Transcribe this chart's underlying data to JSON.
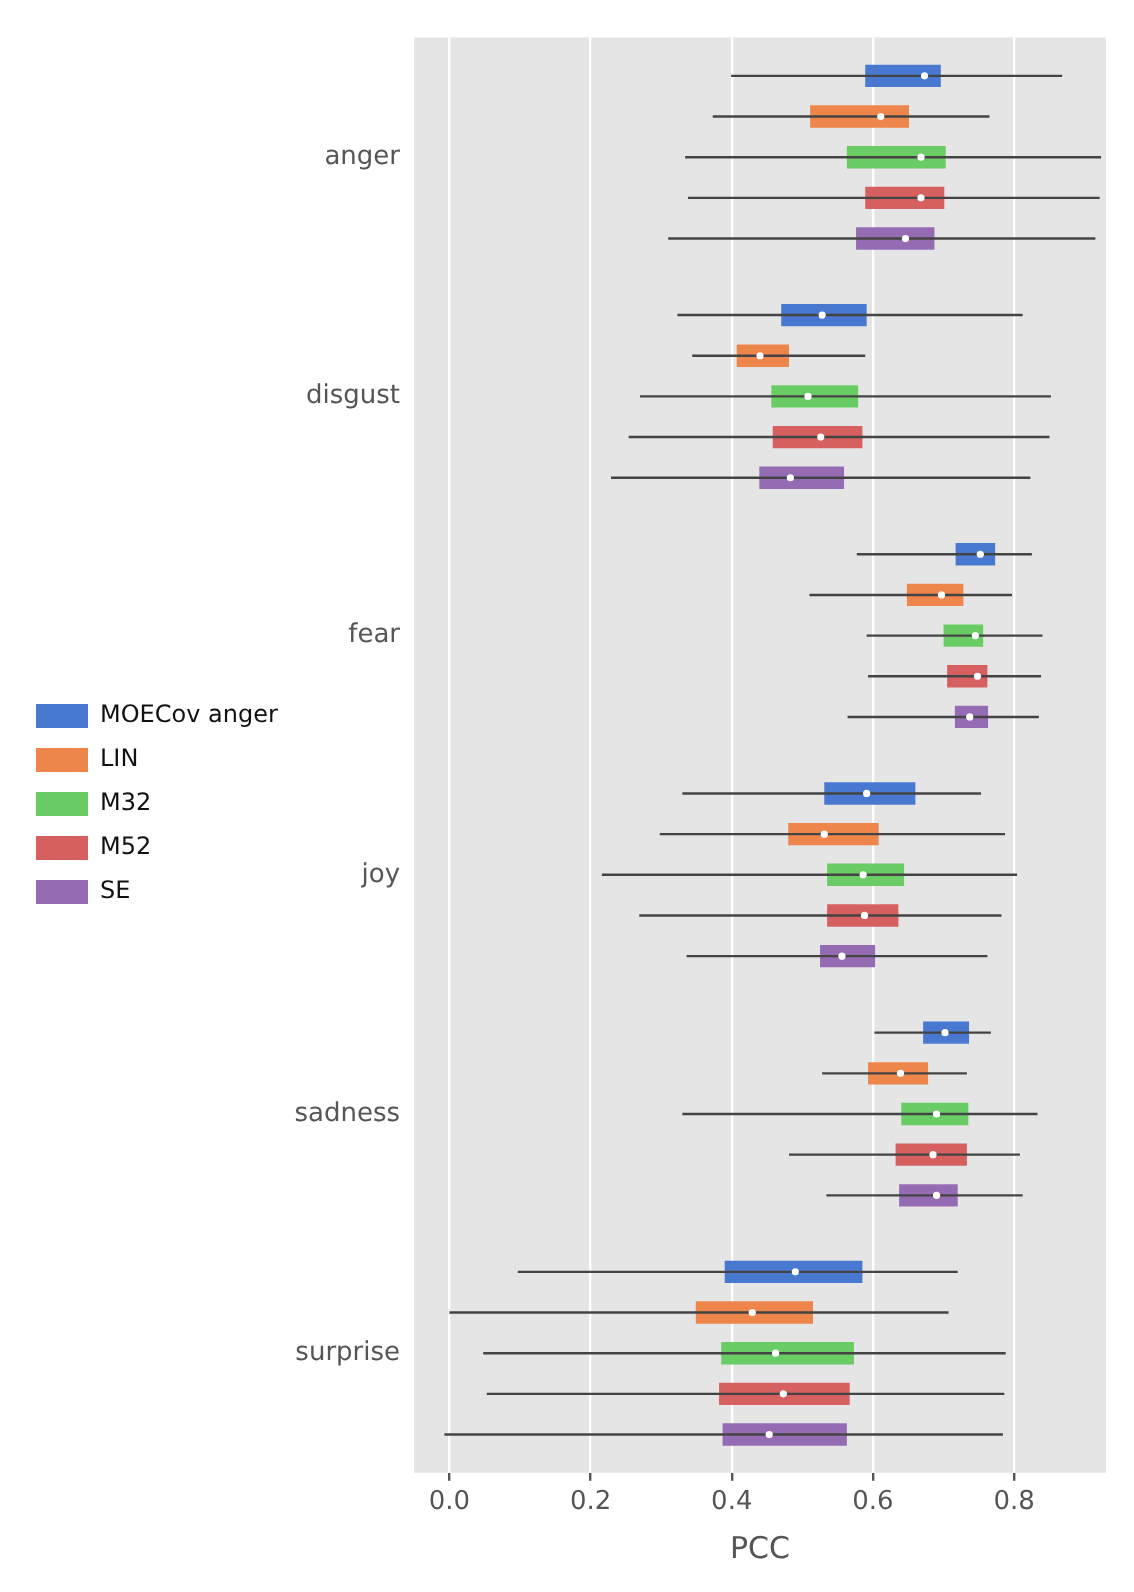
{
  "chart_data": {
    "type": "box",
    "orientation": "horizontal",
    "xlabel": "PCC",
    "categories": [
      "anger",
      "disgust",
      "fear",
      "joy",
      "sadness",
      "surprise"
    ],
    "xlim": [
      -0.05,
      0.93
    ],
    "xticks": [
      {
        "value": 0,
        "label": "0.0"
      },
      {
        "value": 0.2,
        "label": "0.2"
      },
      {
        "value": 0.4,
        "label": "0.4"
      },
      {
        "value": 0.6,
        "label": "0.6"
      },
      {
        "value": 0.8,
        "label": "0.8"
      }
    ],
    "grid": "x",
    "legend": "left",
    "series": [
      {
        "name": "MOECov anger",
        "color": "#4878d0",
        "boxes": [
          {
            "low": 0.399,
            "q1": 0.589,
            "median": 0.673,
            "q3": 0.696,
            "high": 0.868
          },
          {
            "low": 0.323,
            "q1": 0.47,
            "median": 0.528,
            "q3": 0.591,
            "high": 0.812
          },
          {
            "low": 0.577,
            "q1": 0.717,
            "median": 0.752,
            "q3": 0.773,
            "high": 0.825
          },
          {
            "low": 0.33,
            "q1": 0.531,
            "median": 0.591,
            "q3": 0.66,
            "high": 0.753
          },
          {
            "low": 0.602,
            "q1": 0.671,
            "median": 0.702,
            "q3": 0.736,
            "high": 0.767
          },
          {
            "low": 0.097,
            "q1": 0.39,
            "median": 0.49,
            "q3": 0.585,
            "high": 0.72
          }
        ]
      },
      {
        "name": "LIN",
        "color": "#ee854a",
        "boxes": [
          {
            "low": 0.373,
            "q1": 0.511,
            "median": 0.611,
            "q3": 0.651,
            "high": 0.765
          },
          {
            "low": 0.344,
            "q1": 0.407,
            "median": 0.44,
            "q3": 0.481,
            "high": 0.589
          },
          {
            "low": 0.51,
            "q1": 0.648,
            "median": 0.697,
            "q3": 0.728,
            "high": 0.797
          },
          {
            "low": 0.298,
            "q1": 0.48,
            "median": 0.531,
            "q3": 0.608,
            "high": 0.787
          },
          {
            "low": 0.528,
            "q1": 0.593,
            "median": 0.639,
            "q3": 0.678,
            "high": 0.733
          },
          {
            "low": 0.0,
            "q1": 0.349,
            "median": 0.429,
            "q3": 0.515,
            "high": 0.707
          }
        ]
      },
      {
        "name": "M32",
        "color": "#6acc64",
        "boxes": [
          {
            "low": 0.334,
            "q1": 0.563,
            "median": 0.668,
            "q3": 0.703,
            "high": 0.923
          },
          {
            "low": 0.27,
            "q1": 0.456,
            "median": 0.508,
            "q3": 0.579,
            "high": 0.852
          },
          {
            "low": 0.591,
            "q1": 0.7,
            "median": 0.745,
            "q3": 0.756,
            "high": 0.84
          },
          {
            "low": 0.216,
            "q1": 0.535,
            "median": 0.586,
            "q3": 0.644,
            "high": 0.804
          },
          {
            "low": 0.33,
            "q1": 0.64,
            "median": 0.69,
            "q3": 0.735,
            "high": 0.833
          },
          {
            "low": 0.048,
            "q1": 0.385,
            "median": 0.462,
            "q3": 0.573,
            "high": 0.788
          }
        ]
      },
      {
        "name": "M52",
        "color": "#d65f5f",
        "boxes": [
          {
            "low": 0.338,
            "q1": 0.589,
            "median": 0.668,
            "q3": 0.701,
            "high": 0.921
          },
          {
            "low": 0.254,
            "q1": 0.458,
            "median": 0.526,
            "q3": 0.585,
            "high": 0.85
          },
          {
            "low": 0.593,
            "q1": 0.705,
            "median": 0.748,
            "q3": 0.762,
            "high": 0.838
          },
          {
            "low": 0.269,
            "q1": 0.535,
            "median": 0.588,
            "q3": 0.636,
            "high": 0.782
          },
          {
            "low": 0.481,
            "q1": 0.632,
            "median": 0.685,
            "q3": 0.733,
            "high": 0.808
          },
          {
            "low": 0.053,
            "q1": 0.382,
            "median": 0.473,
            "q3": 0.567,
            "high": 0.786
          }
        ]
      },
      {
        "name": "SE",
        "color": "#956cb4",
        "boxes": [
          {
            "low": 0.31,
            "q1": 0.576,
            "median": 0.646,
            "q3": 0.687,
            "high": 0.915
          },
          {
            "low": 0.229,
            "q1": 0.439,
            "median": 0.483,
            "q3": 0.559,
            "high": 0.823
          },
          {
            "low": 0.564,
            "q1": 0.716,
            "median": 0.737,
            "q3": 0.763,
            "high": 0.835
          },
          {
            "low": 0.336,
            "q1": 0.525,
            "median": 0.556,
            "q3": 0.603,
            "high": 0.762
          },
          {
            "low": 0.534,
            "q1": 0.637,
            "median": 0.69,
            "q3": 0.72,
            "high": 0.812
          },
          {
            "low": -0.007,
            "q1": 0.387,
            "median": 0.453,
            "q3": 0.563,
            "high": 0.784
          }
        ]
      }
    ]
  }
}
